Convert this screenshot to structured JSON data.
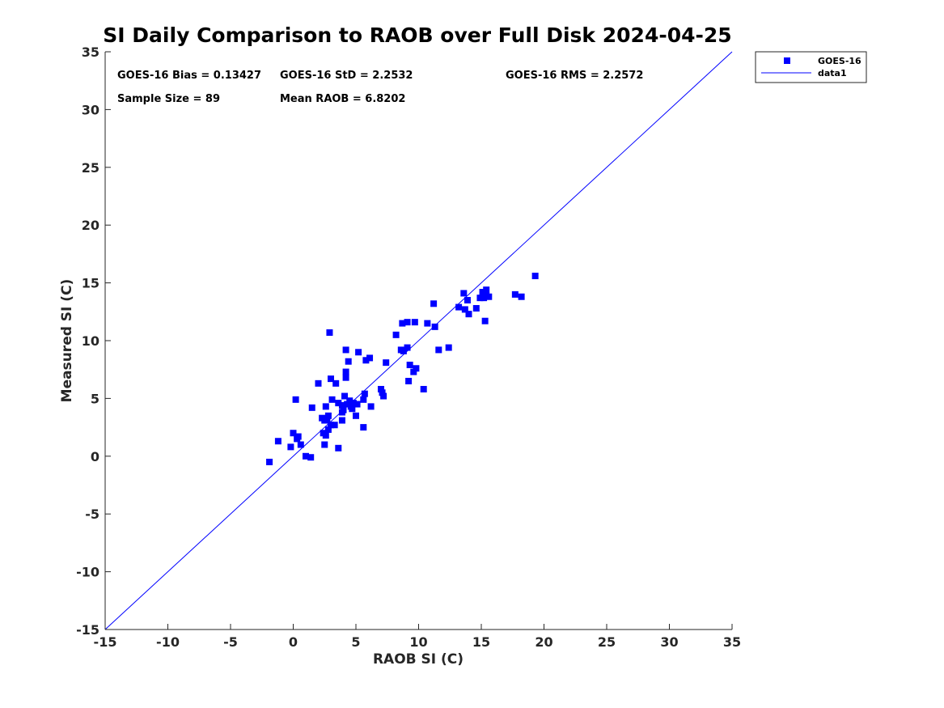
{
  "chart_data": {
    "type": "scatter",
    "title": "SI Daily Comparison to RAOB over Full Disk 2024-04-25",
    "xlabel": "RAOB SI (C)",
    "ylabel": "Measured SI (C)",
    "xlim": [
      -15,
      35
    ],
    "ylim": [
      -15,
      35
    ],
    "xticks": [
      "-15",
      "-10",
      "-5",
      "0",
      "5",
      "10",
      "15",
      "20",
      "25",
      "30",
      "35"
    ],
    "yticks": [
      "-15",
      "-10",
      "-5",
      "0",
      "5",
      "10",
      "15",
      "20",
      "25",
      "30",
      "35"
    ],
    "grid": false,
    "legend_position": "outside-top-right",
    "stats": {
      "bias": "GOES-16 Bias = 0.13427",
      "std": "GOES-16 StD = 2.2532",
      "rms": "GOES-16 RMS = 2.2572",
      "sample_size": "Sample Size = 89",
      "mean_raob": "Mean RAOB = 6.8202"
    },
    "series": [
      {
        "name": "GOES-16",
        "kind": "scatter",
        "marker": "square",
        "color": "#0000ff",
        "points": [
          [
            -1.9,
            -0.5
          ],
          [
            -1.2,
            1.3
          ],
          [
            -0.2,
            0.8
          ],
          [
            0.0,
            2.0
          ],
          [
            0.2,
            4.9
          ],
          [
            0.3,
            1.5
          ],
          [
            0.4,
            1.7
          ],
          [
            0.6,
            1.0
          ],
          [
            1.0,
            0.0
          ],
          [
            1.4,
            -0.1
          ],
          [
            1.5,
            4.2
          ],
          [
            2.0,
            6.3
          ],
          [
            2.3,
            3.3
          ],
          [
            2.4,
            2.0
          ],
          [
            2.5,
            3.1
          ],
          [
            2.5,
            1.0
          ],
          [
            2.6,
            4.3
          ],
          [
            2.6,
            1.8
          ],
          [
            2.7,
            3.2
          ],
          [
            2.8,
            2.3
          ],
          [
            2.8,
            3.5
          ],
          [
            2.9,
            10.7
          ],
          [
            3.0,
            2.7
          ],
          [
            3.0,
            6.7
          ],
          [
            3.1,
            4.9
          ],
          [
            3.3,
            2.7
          ],
          [
            3.4,
            6.3
          ],
          [
            3.6,
            0.7
          ],
          [
            3.6,
            4.6
          ],
          [
            3.9,
            4.4
          ],
          [
            3.9,
            3.8
          ],
          [
            3.9,
            3.1
          ],
          [
            4.0,
            4.0
          ],
          [
            4.1,
            5.2
          ],
          [
            4.2,
            9.2
          ],
          [
            4.2,
            7.3
          ],
          [
            4.2,
            6.8
          ],
          [
            4.3,
            4.5
          ],
          [
            4.4,
            8.2
          ],
          [
            4.5,
            4.8
          ],
          [
            4.7,
            4.1
          ],
          [
            4.8,
            4.6
          ],
          [
            5.0,
            3.5
          ],
          [
            5.1,
            4.5
          ],
          [
            5.2,
            9.0
          ],
          [
            5.6,
            2.5
          ],
          [
            5.6,
            4.9
          ],
          [
            5.7,
            5.4
          ],
          [
            5.8,
            8.3
          ],
          [
            6.1,
            8.5
          ],
          [
            6.2,
            4.3
          ],
          [
            7.0,
            5.8
          ],
          [
            7.1,
            5.5
          ],
          [
            7.2,
            5.2
          ],
          [
            7.4,
            8.1
          ],
          [
            8.2,
            10.5
          ],
          [
            8.6,
            9.2
          ],
          [
            8.7,
            11.5
          ],
          [
            8.8,
            9.1
          ],
          [
            9.1,
            11.6
          ],
          [
            9.1,
            9.4
          ],
          [
            9.2,
            6.5
          ],
          [
            9.3,
            7.9
          ],
          [
            9.6,
            7.3
          ],
          [
            9.7,
            11.6
          ],
          [
            9.8,
            7.6
          ],
          [
            10.4,
            5.8
          ],
          [
            10.7,
            11.5
          ],
          [
            11.2,
            13.2
          ],
          [
            11.3,
            11.2
          ],
          [
            11.6,
            9.2
          ],
          [
            12.4,
            9.4
          ],
          [
            13.2,
            12.9
          ],
          [
            13.6,
            14.1
          ],
          [
            13.7,
            12.7
          ],
          [
            13.9,
            13.5
          ],
          [
            14.0,
            12.3
          ],
          [
            14.6,
            12.8
          ],
          [
            14.9,
            13.7
          ],
          [
            15.1,
            14.2
          ],
          [
            15.2,
            13.7
          ],
          [
            15.3,
            11.7
          ],
          [
            15.4,
            14.4
          ],
          [
            15.4,
            13.9
          ],
          [
            15.6,
            13.8
          ],
          [
            17.7,
            14.0
          ],
          [
            18.2,
            13.8
          ],
          [
            19.3,
            15.6
          ],
          [
            4.6,
            4.3
          ]
        ]
      },
      {
        "name": "data1",
        "kind": "line",
        "color": "#0000ff",
        "x": [
          -15,
          35
        ],
        "y": [
          -15,
          35
        ]
      }
    ]
  }
}
